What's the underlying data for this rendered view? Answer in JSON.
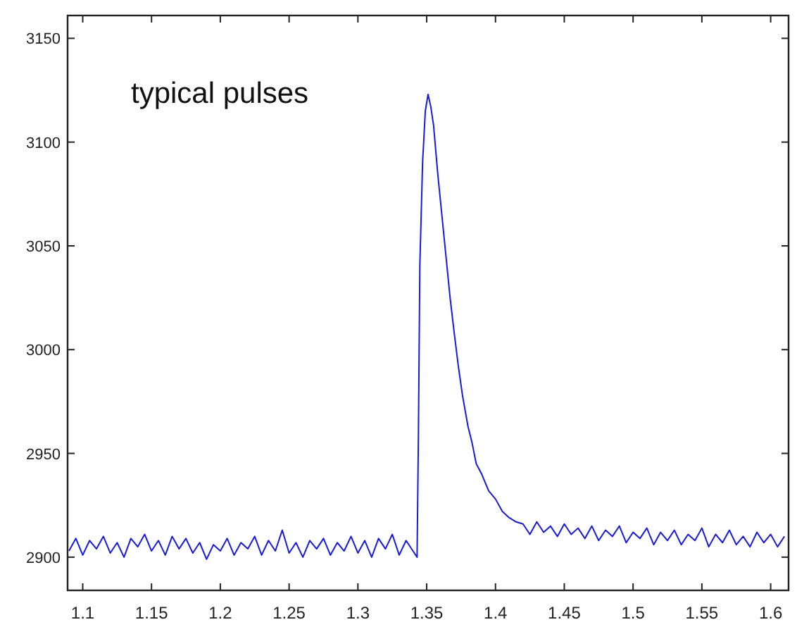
{
  "chart_data": {
    "type": "line",
    "annotations": [
      "typical pulses"
    ],
    "xlim": [
      1.089,
      1.613
    ],
    "xticks": [
      1.1,
      1.15,
      1.2,
      1.25,
      1.3,
      1.35,
      1.4,
      1.45,
      1.5,
      1.55,
      1.6
    ],
    "ylim": [
      2884,
      3161
    ],
    "yticks": [
      2900,
      2950,
      3000,
      3050,
      3100,
      3150
    ],
    "grid": false,
    "x": [
      1.09,
      1.095,
      1.1,
      1.105,
      1.11,
      1.115,
      1.12,
      1.125,
      1.13,
      1.135,
      1.14,
      1.145,
      1.15,
      1.155,
      1.16,
      1.165,
      1.17,
      1.175,
      1.18,
      1.185,
      1.19,
      1.195,
      1.2,
      1.205,
      1.21,
      1.215,
      1.22,
      1.225,
      1.23,
      1.235,
      1.24,
      1.245,
      1.25,
      1.255,
      1.26,
      1.265,
      1.27,
      1.275,
      1.28,
      1.285,
      1.29,
      1.295,
      1.3,
      1.305,
      1.31,
      1.315,
      1.32,
      1.325,
      1.33,
      1.335,
      1.34,
      1.343,
      1.344,
      1.345,
      1.347,
      1.349,
      1.351,
      1.353,
      1.355,
      1.358,
      1.361,
      1.364,
      1.367,
      1.37,
      1.373,
      1.376,
      1.38,
      1.383,
      1.386,
      1.39,
      1.395,
      1.4,
      1.405,
      1.41,
      1.415,
      1.42,
      1.425,
      1.43,
      1.435,
      1.44,
      1.445,
      1.45,
      1.455,
      1.46,
      1.465,
      1.47,
      1.475,
      1.48,
      1.485,
      1.49,
      1.495,
      1.5,
      1.505,
      1.51,
      1.515,
      1.52,
      1.525,
      1.53,
      1.535,
      1.54,
      1.545,
      1.55,
      1.555,
      1.56,
      1.565,
      1.57,
      1.575,
      1.58,
      1.585,
      1.59,
      1.595,
      1.6,
      1.605,
      1.61
    ],
    "series": [
      {
        "color": "#1a1adb",
        "values": [
          2903,
          2909,
          2901,
          2908,
          2904,
          2910,
          2902,
          2907,
          2900,
          2909,
          2905,
          2911,
          2903,
          2908,
          2901,
          2910,
          2904,
          2909,
          2902,
          2907,
          2899,
          2906,
          2903,
          2909,
          2901,
          2907,
          2904,
          2910,
          2901,
          2908,
          2903,
          2913,
          2902,
          2907,
          2900,
          2908,
          2904,
          2909,
          2901,
          2907,
          2903,
          2910,
          2902,
          2908,
          2900,
          2909,
          2904,
          2911,
          2901,
          2908,
          2903,
          2900,
          2960,
          3040,
          3090,
          3115,
          3123,
          3117,
          3108,
          3085,
          3065,
          3045,
          3025,
          3008,
          2992,
          2978,
          2963,
          2955,
          2945,
          2940,
          2932,
          2928,
          2922,
          2919,
          2917,
          2916,
          2911,
          2917,
          2912,
          2915,
          2910,
          2916,
          2911,
          2914,
          2909,
          2915,
          2908,
          2913,
          2910,
          2915,
          2907,
          2912,
          2909,
          2914,
          2906,
          2912,
          2908,
          2913,
          2906,
          2911,
          2908,
          2914,
          2905,
          2911,
          2907,
          2913,
          2906,
          2910,
          2905,
          2912,
          2907,
          2911,
          2905,
          2910
        ]
      }
    ]
  }
}
